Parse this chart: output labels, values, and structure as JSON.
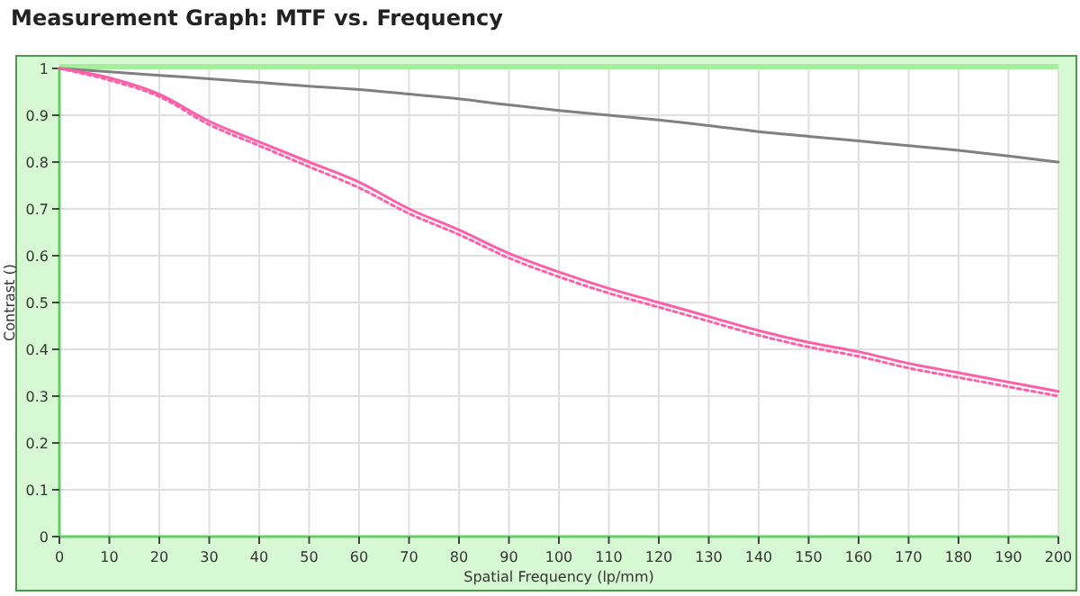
{
  "chart_data": {
    "type": "line",
    "title": "Measurement Graph: MTF vs. Frequency",
    "xlabel": "Spatial Frequency (lp/mm)",
    "ylabel": "Contrast ()",
    "x": [
      0,
      10,
      20,
      30,
      40,
      50,
      60,
      70,
      80,
      90,
      100,
      110,
      120,
      130,
      140,
      150,
      160,
      170,
      180,
      190,
      200
    ],
    "xlim": [
      0,
      200
    ],
    "xticks": [
      0,
      10,
      20,
      30,
      40,
      50,
      60,
      70,
      80,
      90,
      100,
      110,
      120,
      130,
      140,
      150,
      160,
      170,
      180,
      190,
      200
    ],
    "ylim": [
      0,
      1
    ],
    "yticks": [
      0,
      0.1,
      0.2,
      0.3,
      0.4,
      0.5,
      0.6,
      0.7,
      0.8,
      0.9,
      1
    ],
    "grid": true,
    "series": [
      {
        "color": "#808080",
        "line_style": "solid",
        "values": [
          1,
          0.993,
          0.985,
          0.978,
          0.97,
          0.962,
          0.955,
          0.945,
          0.935,
          0.922,
          0.91,
          0.9,
          0.89,
          0.878,
          0.865,
          0.855,
          0.845,
          0.835,
          0.825,
          0.813,
          0.8
        ]
      },
      {
        "color": "#ff5fa8",
        "line_style": "solid",
        "values": [
          1,
          0.98,
          0.945,
          0.887,
          0.843,
          0.8,
          0.757,
          0.7,
          0.655,
          0.605,
          0.565,
          0.53,
          0.5,
          0.47,
          0.44,
          0.415,
          0.395,
          0.37,
          0.35,
          0.33,
          0.31
        ]
      },
      {
        "color": "#ff5fa8",
        "line_style": "dotted",
        "values": [
          1,
          0.975,
          0.94,
          0.88,
          0.835,
          0.79,
          0.745,
          0.69,
          0.645,
          0.595,
          0.555,
          0.52,
          0.49,
          0.46,
          0.43,
          0.405,
          0.385,
          0.36,
          0.34,
          0.32,
          0.3
        ]
      }
    ]
  }
}
